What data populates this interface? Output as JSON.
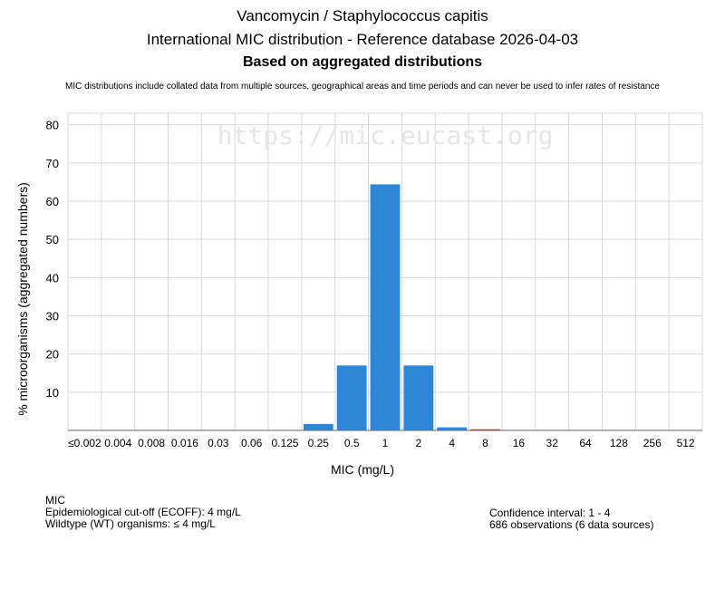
{
  "header": {
    "title_line1": "Vancomycin / Staphylococcus capitis",
    "title_line2": "International MIC distribution - Reference database 2026-04-03",
    "title_line3": "Based on aggregated distributions",
    "subtitle": "MIC distributions include collated data from multiple sources, geographical areas and time periods and can never be used to infer rates of resistance"
  },
  "watermark": "https://mic.eucast.org",
  "footer": {
    "heading": "MIC",
    "ecoff": "Epidemiological cut-off (ECOFF): 4 mg/L",
    "wildtype": "Wildtype (WT) organisms: ≤ 4 mg/L",
    "confidence": "Confidence interval: 1 - 4",
    "observations": "686 observations (6 data sources)"
  },
  "chart_data": {
    "type": "bar",
    "xlabel": "MIC (mg/L)",
    "ylabel": "% microorganisms (aggregated numbers)",
    "ylim": [
      0,
      83
    ],
    "yticks": [
      10,
      20,
      30,
      40,
      50,
      60,
      70,
      80
    ],
    "grid": true,
    "categories": [
      "≤0.002",
      "0.004",
      "0.008",
      "0.016",
      "0.03",
      "0.06",
      "0.125",
      "0.25",
      "0.5",
      "1",
      "2",
      "4",
      "8",
      "16",
      "32",
      "64",
      "128",
      "256",
      "512"
    ],
    "values": [
      0,
      0,
      0,
      0,
      0,
      0,
      0,
      1.7,
      17.0,
      64.4,
      17.0,
      0.8,
      0.3,
      0,
      0,
      0,
      0,
      0,
      0
    ],
    "colors": {
      "wildtype": "#2e86d9",
      "non_wildtype": "#c0392b",
      "grid": "#d9d9d9",
      "axis": "#666666",
      "watermark": "#e6e6e6"
    },
    "non_wildtype_from_index": 12
  }
}
